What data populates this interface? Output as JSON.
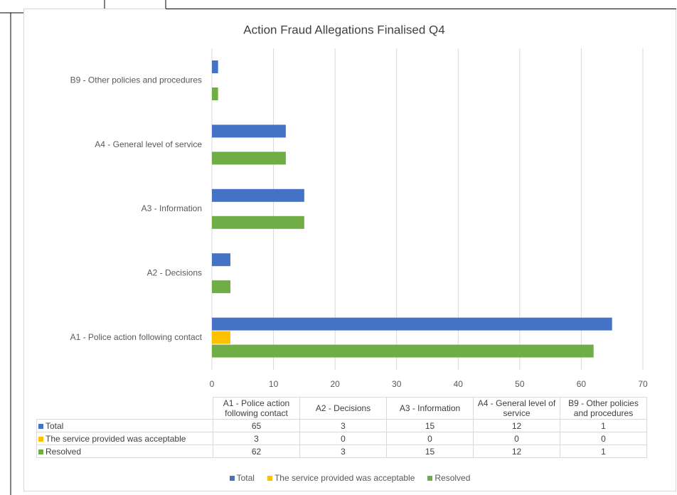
{
  "chart_data": {
    "type": "hbar",
    "title": "Action Fraud Allegations Finalised Q4",
    "categories": [
      "A1 - Police action following contact",
      "A2 - Decisions",
      "A3 - Information",
      "A4 - General level of service",
      "B9 - Other policies and procedures"
    ],
    "series": [
      {
        "name": "Total",
        "color": "#4472c4",
        "values": [
          65,
          3,
          15,
          12,
          1
        ]
      },
      {
        "name": "The service provided was acceptable",
        "color": "#ffc000",
        "values": [
          3,
          0,
          0,
          0,
          0
        ]
      },
      {
        "name": "Resolved",
        "color": "#70ad47",
        "values": [
          62,
          3,
          15,
          12,
          1
        ]
      }
    ],
    "xlim": [
      0,
      70
    ],
    "xticks": [
      0,
      10,
      20,
      30,
      40,
      50,
      60,
      70
    ],
    "grid": true,
    "legend": "bottom"
  }
}
